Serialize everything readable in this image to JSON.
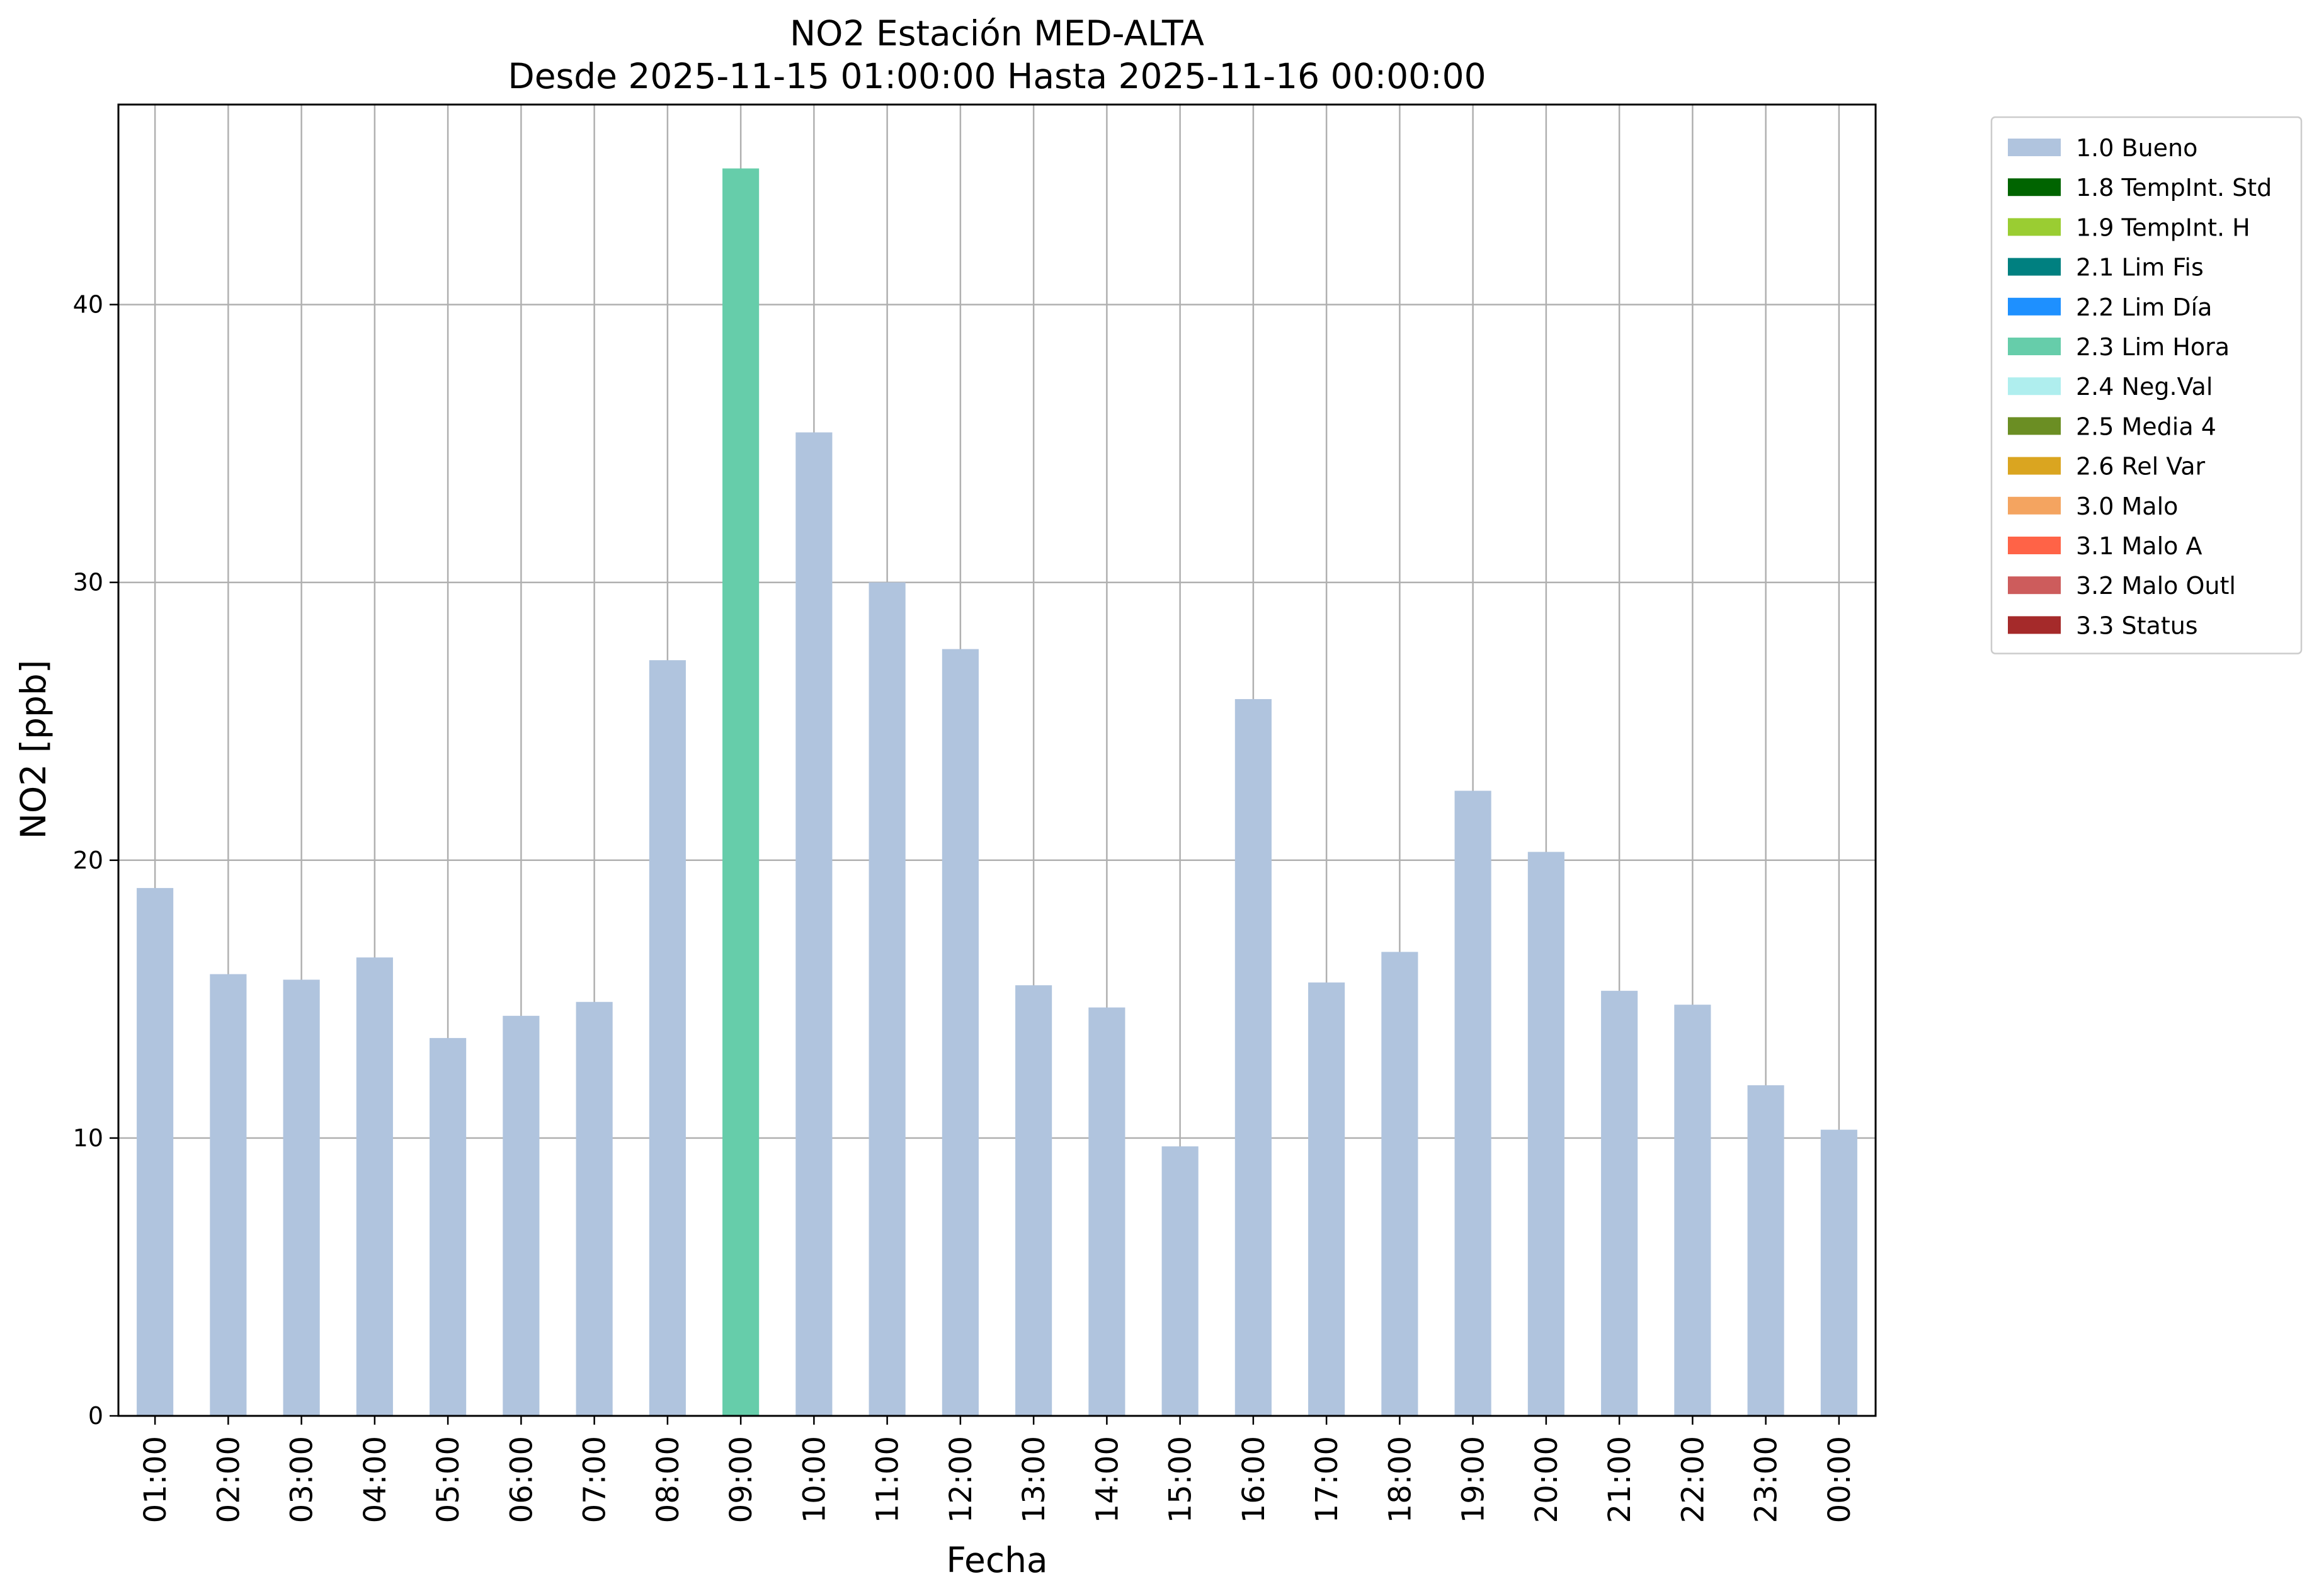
{
  "chart_data": {
    "type": "bar",
    "title": "NO2 Estación MED-ALTA",
    "subtitle": "Desde 2025-11-15 01:00:00 Hasta 2025-11-16 00:00:00",
    "xlabel": "Fecha",
    "ylabel": "NO2 [ppb]",
    "ylim": [
      0,
      47.2
    ],
    "yticks": [
      0,
      10,
      20,
      30,
      40
    ],
    "grid": true,
    "legend_position": "outside-top-right",
    "categories": [
      "01:00",
      "02:00",
      "03:00",
      "04:00",
      "05:00",
      "06:00",
      "07:00",
      "08:00",
      "09:00",
      "10:00",
      "11:00",
      "12:00",
      "13:00",
      "14:00",
      "15:00",
      "16:00",
      "17:00",
      "18:00",
      "19:00",
      "20:00",
      "21:00",
      "22:00",
      "23:00",
      "00:00"
    ],
    "values": [
      19.0,
      15.9,
      15.7,
      16.5,
      13.6,
      14.4,
      14.9,
      27.2,
      44.9,
      35.4,
      30.0,
      27.6,
      15.5,
      14.7,
      9.7,
      25.8,
      15.6,
      16.7,
      22.5,
      20.3,
      15.3,
      14.8,
      11.9,
      10.3
    ],
    "flags": [
      "1.0 Bueno",
      "1.0 Bueno",
      "1.0 Bueno",
      "1.0 Bueno",
      "1.0 Bueno",
      "1.0 Bueno",
      "1.0 Bueno",
      "1.0 Bueno",
      "2.3 Lim Hora",
      "1.0 Bueno",
      "1.0 Bueno",
      "1.0 Bueno",
      "1.0 Bueno",
      "1.0 Bueno",
      "1.0 Bueno",
      "1.0 Bueno",
      "1.0 Bueno",
      "1.0 Bueno",
      "1.0 Bueno",
      "1.0 Bueno",
      "1.0 Bueno",
      "1.0 Bueno",
      "1.0 Bueno",
      "1.0 Bueno"
    ],
    "legend": [
      {
        "label": "1.0 Bueno",
        "color": "#b0c4de"
      },
      {
        "label": "1.8 TempInt. Std",
        "color": "#006400"
      },
      {
        "label": "1.9 TempInt. H",
        "color": "#9acd32"
      },
      {
        "label": "2.1 Lim Fis",
        "color": "#008080"
      },
      {
        "label": "2.2 Lim Día",
        "color": "#1e90ff"
      },
      {
        "label": "2.3 Lim Hora",
        "color": "#66cdaa"
      },
      {
        "label": "2.4 Neg.Val",
        "color": "#afeeee"
      },
      {
        "label": "2.5 Media 4",
        "color": "#6b8e23"
      },
      {
        "label": "2.6 Rel Var",
        "color": "#daa520"
      },
      {
        "label": "3.0 Malo",
        "color": "#f4a460"
      },
      {
        "label": "3.1 Malo A",
        "color": "#ff6347"
      },
      {
        "label": "3.2 Malo Outl",
        "color": "#cd5c5c"
      },
      {
        "label": "3.3 Status",
        "color": "#a52a2a"
      }
    ]
  }
}
